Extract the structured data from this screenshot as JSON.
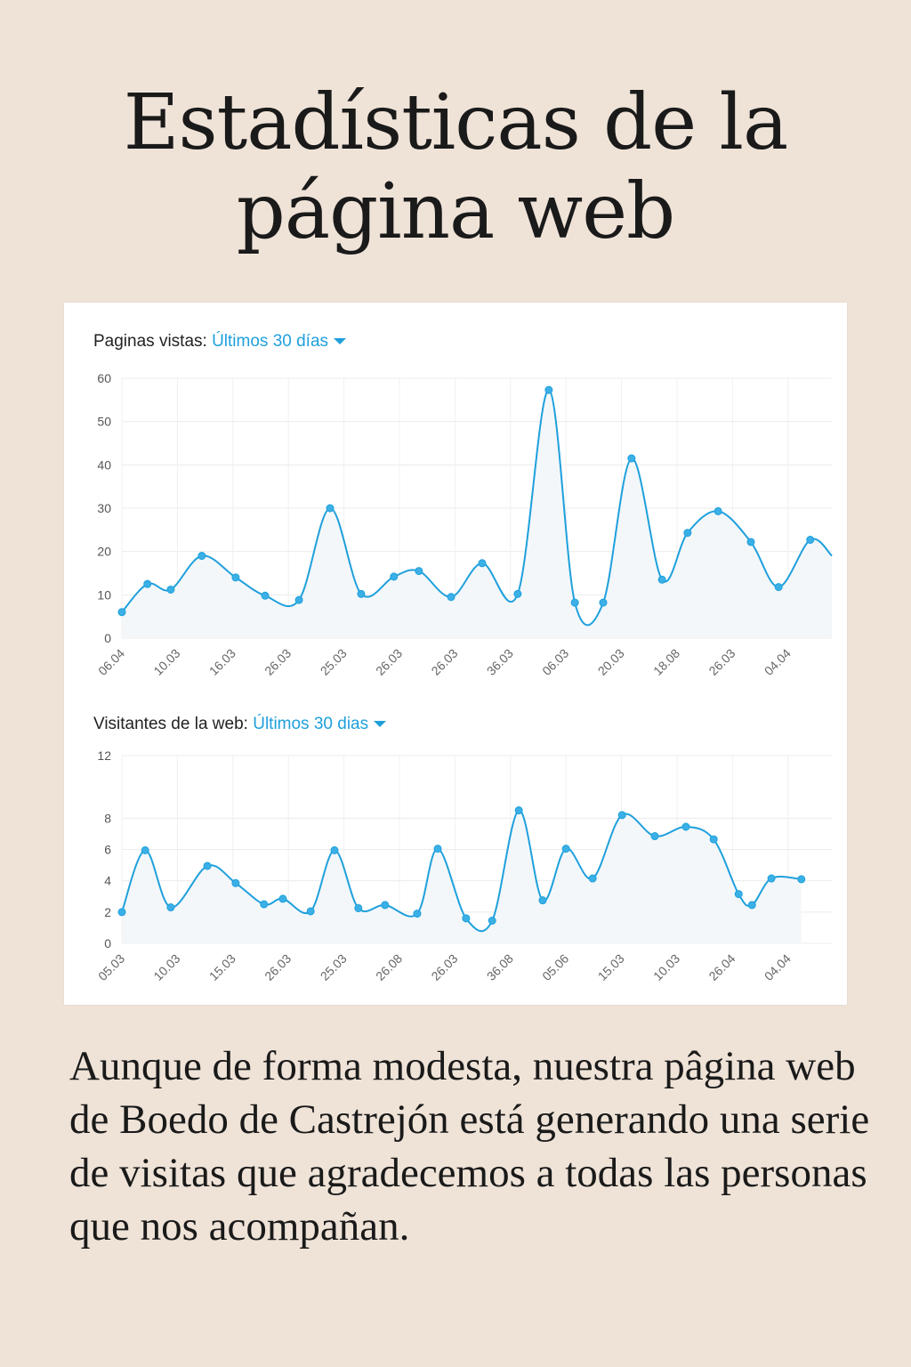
{
  "title": "Estadísticas de la página web",
  "paragraph": "Aunque de forma modesta, nuestra pâgina web de Boedo de Castrejón está generando una serie de visitas que agradecemos a todas las personas que nos acompañan.",
  "colors": {
    "accent": "#1fa0dc",
    "fill": "#f3f7fa",
    "grid": "#ececec"
  },
  "chart_data": [
    {
      "type": "area",
      "title_label": "Paginas vistas:",
      "period": "Últimos 30 días",
      "ylim": [
        0,
        60
      ],
      "yticks": [
        "0",
        "10",
        "20",
        "30",
        "40",
        "50",
        "60"
      ],
      "xticks": [
        "06.04",
        "10.03",
        "16.03",
        "26.03",
        "25.03",
        "26.03",
        "26.03",
        "36.03",
        "06.03",
        "20.03",
        "18.08",
        "26.03",
        "04.04"
      ],
      "x": [
        0,
        0.46,
        0.88,
        1.44,
        2.05,
        2.58,
        3.19,
        3.75,
        4.31,
        4.9,
        5.35,
        5.93,
        6.49,
        7.13,
        7.69,
        8.16,
        8.67,
        9.18,
        9.73,
        10.19,
        10.74,
        11.33,
        11.83,
        12.4,
        12.79
      ],
      "values": [
        6,
        12.5,
        11.2,
        19,
        14,
        9.8,
        8.8,
        30,
        10.2,
        14.2,
        15.5,
        9.5,
        17.3,
        10.2,
        57.3,
        8.2,
        8.2,
        41.5,
        13.5,
        24.3,
        29.3,
        22.2,
        11.8,
        22.7,
        19
      ]
    },
    {
      "type": "area",
      "title_label": "Visitantes de la web:",
      "period": "Últimos 30 dias",
      "ylim": [
        0,
        12
      ],
      "yticks": [
        "0",
        "2",
        "4",
        "6",
        "8",
        "12"
      ],
      "ytick_values": [
        0,
        2,
        4,
        6,
        8,
        12
      ],
      "xticks": [
        "05.03",
        "10.03",
        "15.03",
        "26.03",
        "25.03",
        "26.08",
        "26.03",
        "36.08",
        "05.06",
        "15.03",
        "10.03",
        "26.04",
        "04.04"
      ],
      "x": [
        0,
        0.42,
        0.88,
        1.54,
        2.05,
        2.56,
        2.9,
        3.4,
        3.83,
        4.26,
        4.74,
        5.32,
        5.69,
        6.2,
        6.67,
        7.15,
        7.58,
        8,
        8.48,
        9.01,
        9.6,
        10.16,
        10.66,
        11.11,
        11.35,
        11.7,
        12.24
      ],
      "values": [
        2,
        5.95,
        2.3,
        4.95,
        3.85,
        2.5,
        2.85,
        2.05,
        5.95,
        2.25,
        2.45,
        1.9,
        6.05,
        1.6,
        1.45,
        8.5,
        2.75,
        6.05,
        4.15,
        8.2,
        6.85,
        7.45,
        6.65,
        3.15,
        2.45,
        4.15,
        4.1
      ]
    }
  ]
}
